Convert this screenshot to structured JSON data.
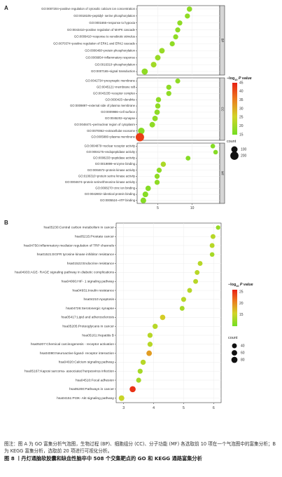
{
  "chart_data": [
    {
      "type": "scatter",
      "panel_label": "A",
      "xlabel": "",
      "ylabel": "",
      "xlim": [
        2,
        14
      ],
      "xticks": [
        5,
        10
      ],
      "legend": {
        "color_title": "−log10 P value",
        "color_title_prefix": "−log",
        "color_title_sub": "10",
        "color_title_suffix": "P value",
        "color_ticks": [
          45,
          40,
          35,
          30,
          25,
          20,
          15
        ],
        "color_range": [
          15,
          45
        ],
        "size_title": "count",
        "size_ticks": [
          100,
          200
        ]
      },
      "facets": [
        {
          "name": "BP",
          "terms": [
            {
              "label": "GO:0007204~positive regulation of cytosolic calcium ion concentration",
              "x": 9.6,
              "count": 60,
              "p": 18
            },
            {
              "label": "GO:0018105~peptidyl- serine phosphorylation",
              "x": 9.3,
              "count": 55,
              "p": 18
            },
            {
              "label": "GO:0001666~response to hypoxia",
              "x": 8.2,
              "count": 55,
              "p": 18
            },
            {
              "label": "GO:0043410~positive regulation of MAPK cascade",
              "x": 7.9,
              "count": 55,
              "p": 18
            },
            {
              "label": "GO:0009410~response to xenobiotic stimulus",
              "x": 7.6,
              "count": 55,
              "p": 18
            },
            {
              "label": "GO:0070374~positive regulation of ERK1 and ERK2 cascade",
              "x": 7.1,
              "count": 55,
              "p": 18
            },
            {
              "label": "GO:0006468~protein phosphorylation",
              "x": 5.6,
              "count": 70,
              "p": 19
            },
            {
              "label": "GO:0009954~inflammatory response",
              "x": 5.0,
              "count": 70,
              "p": 19
            },
            {
              "label": "GO:0016310~phosphorylation",
              "x": 4.4,
              "count": 75,
              "p": 20
            },
            {
              "label": "GO:0007165~signal transduction",
              "x": 3.1,
              "count": 95,
              "p": 18
            }
          ]
        },
        {
          "name": "CC",
          "terms": [
            {
              "label": "GO:0042734~presynaptic membrane",
              "x": 7.9,
              "count": 50,
              "p": 18
            },
            {
              "label": "GO:0045121~membrane raft",
              "x": 6.6,
              "count": 55,
              "p": 18
            },
            {
              "label": "GO:0043235~receptor complex",
              "x": 6.6,
              "count": 55,
              "p": 18
            },
            {
              "label": "GO:0030425~dendrite",
              "x": 5.1,
              "count": 60,
              "p": 18
            },
            {
              "label": "GO:0009897~external side of plasma membrane",
              "x": 5.0,
              "count": 60,
              "p": 18
            },
            {
              "label": "GO:0009986~cell surface",
              "x": 4.9,
              "count": 65,
              "p": 18
            },
            {
              "label": "GO:0045202~synapse",
              "x": 4.6,
              "count": 65,
              "p": 18
            },
            {
              "label": "GO:0048471~perinuclear region of cytoplasm",
              "x": 4.2,
              "count": 70,
              "p": 18
            },
            {
              "label": "GO:0070062~extracellular exosome",
              "x": 2.6,
              "count": 110,
              "p": 17
            },
            {
              "label": "GO:0005886~plasma membrane",
              "x": 2.4,
              "count": 210,
              "p": 42
            }
          ]
        },
        {
          "name": "MF",
          "terms": [
            {
              "label": "GO:0004879~nuclear receptor activity",
              "x": 13.0,
              "count": 40,
              "p": 17
            },
            {
              "label": "GO:0004175~endopeptidase activity",
              "x": 13.4,
              "count": 40,
              "p": 17
            },
            {
              "label": "GO:0008233~peptidase activity",
              "x": 9.4,
              "count": 45,
              "p": 17
            },
            {
              "label": "GO:0019899~enzyme binding",
              "x": 5.8,
              "count": 60,
              "p": 21
            },
            {
              "label": "GO:0004672~protein kinase activity",
              "x": 5.2,
              "count": 55,
              "p": 18
            },
            {
              "label": "GO:0106310~protein serine kinase activity",
              "x": 4.9,
              "count": 55,
              "p": 18
            },
            {
              "label": "GO:0004674~protein serine/threonine kinase activity",
              "x": 4.9,
              "count": 55,
              "p": 18
            },
            {
              "label": "GO:0008270~zinc ion binding",
              "x": 3.6,
              "count": 65,
              "p": 17
            },
            {
              "label": "GO:0042802~identical protein binding",
              "x": 3.2,
              "count": 75,
              "p": 17
            },
            {
              "label": "GO:0005524~ATP binding",
              "x": 2.9,
              "count": 75,
              "p": 17
            }
          ]
        }
      ]
    },
    {
      "type": "scatter",
      "panel_label": "B",
      "xlabel": "",
      "ylabel": "",
      "xlim": [
        2.75,
        6.25
      ],
      "xticks": [
        3,
        4,
        5,
        6
      ],
      "legend": {
        "color_title": "−log10 P value",
        "color_title_prefix": "−log",
        "color_title_sub": "10",
        "color_title_suffix": "P value",
        "color_ticks": [
          25,
          20,
          15
        ],
        "color_range": [
          10,
          26
        ],
        "size_title": "count",
        "size_ticks": [
          40,
          60,
          80
        ]
      },
      "terms": [
        {
          "label": "hsa05230:Central carbon metabolism in cancer",
          "x": 6.15,
          "count": 30,
          "p": 12
        },
        {
          "label": "hsa05215:Prostate cancer",
          "x": 5.98,
          "count": 40,
          "p": 14
        },
        {
          "label": "hsa04750:Inflammatory mediator regulation of TRP channels",
          "x": 5.95,
          "count": 40,
          "p": 14
        },
        {
          "label": "hsa01521:EGFR tyrosine kinase inhibitor resistance",
          "x": 5.95,
          "count": 35,
          "p": 13
        },
        {
          "label": "hsa01522:Endocrine resistance",
          "x": 5.55,
          "count": 40,
          "p": 14
        },
        {
          "label": "hsa04933:AGE- RAGE signaling pathway in diabetic complications",
          "x": 5.45,
          "count": 40,
          "p": 14
        },
        {
          "label": "hsa04066:HIF- 1 signaling pathway",
          "x": 5.4,
          "count": 40,
          "p": 14
        },
        {
          "label": "hsa04931:Insulin resistance",
          "x": 5.2,
          "count": 40,
          "p": 14
        },
        {
          "label": "hsa04210:Apoptosis",
          "x": 5.0,
          "count": 45,
          "p": 14
        },
        {
          "label": "hsa04726:Serotonergic synapse",
          "x": 4.95,
          "count": 40,
          "p": 13
        },
        {
          "label": "hsa05417:Lipid and atherosclerosis",
          "x": 4.3,
          "count": 55,
          "p": 16
        },
        {
          "label": "hsa05205:Proteoglycans in cancer",
          "x": 4.05,
          "count": 50,
          "p": 14
        },
        {
          "label": "hsa05161:Hepatitis B",
          "x": 3.88,
          "count": 48,
          "p": 14
        },
        {
          "label": "hsa05207:Chemical carcinogenesis -  receptor activation",
          "x": 3.88,
          "count": 48,
          "p": 14
        },
        {
          "label": "hsa04080:Neuroactive ligand- receptor interaction",
          "x": 3.85,
          "count": 60,
          "p": 19
        },
        {
          "label": "hsa04020:Calcium signaling pathway",
          "x": 3.65,
          "count": 50,
          "p": 14
        },
        {
          "label": "hsa05167:Kaposi sarcoma- associated herpesvirus infection",
          "x": 3.55,
          "count": 45,
          "p": 13
        },
        {
          "label": "hsa04510:Focal adhesion",
          "x": 3.5,
          "count": 45,
          "p": 13
        },
        {
          "label": "hsa05200:Pathways in cancer",
          "x": 3.3,
          "count": 80,
          "p": 25
        },
        {
          "label": "hsa04151:PI3K- Akt signaling pathway",
          "x": 2.93,
          "count": 62,
          "p": 15
        }
      ]
    }
  ],
  "caption": {
    "note": "图注：图 A 为 GO 富集分析气泡图，生物过程 (BP)、细胞组分 (CC)、分子功能 (MF) 各选取前 10 项在一个气泡图中的富集分析；B 为 KEGG 富集分析，选取前 20 项进行可视化分析。",
    "figure": "图 8 丨丹灯通脑软胶囊和缺血性脑卒中 508 个交集靶点的 GO 和 KEGG 通路富集分析"
  }
}
